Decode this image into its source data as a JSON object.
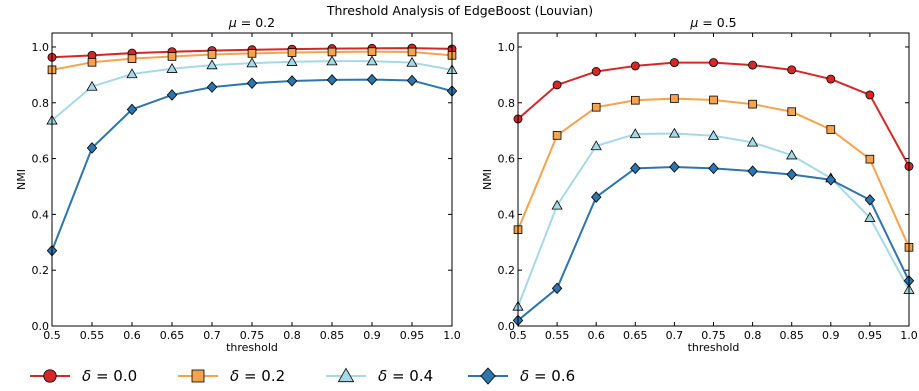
{
  "figure": {
    "title": "Threshold Analysis of EdgeBoost (Louvian)"
  },
  "chart_data": [
    {
      "type": "line",
      "subtitle_greek": "μ",
      "subtitle_rest": " = 0.2",
      "xlabel": "threshold",
      "ylabel": "NMI",
      "xlim": [
        0.5,
        1.0
      ],
      "ylim": [
        0.0,
        1.05
      ],
      "grid": false,
      "x": [
        0.5,
        0.55,
        0.6,
        0.65,
        0.7,
        0.75,
        0.8,
        0.85,
        0.9,
        0.95,
        1.0
      ],
      "xticks": [
        "0.5",
        "0.55",
        "0.6",
        "0.65",
        "0.7",
        "0.75",
        "0.8",
        "0.85",
        "0.9",
        "0.95",
        "1.0"
      ],
      "yticks": [
        "0.0",
        "0.2",
        "0.4",
        "0.6",
        "0.8",
        "1.0"
      ],
      "series": [
        {
          "values": [
            0.963,
            0.97,
            0.978,
            0.983,
            0.987,
            0.99,
            0.992,
            0.994,
            0.995,
            0.996,
            0.993
          ]
        },
        {
          "values": [
            0.918,
            0.945,
            0.958,
            0.966,
            0.973,
            0.977,
            0.98,
            0.982,
            0.983,
            0.982,
            0.97
          ]
        },
        {
          "values": [
            0.737,
            0.858,
            0.903,
            0.922,
            0.935,
            0.942,
            0.947,
            0.949,
            0.949,
            0.944,
            0.918
          ]
        },
        {
          "values": [
            0.27,
            0.638,
            0.776,
            0.828,
            0.856,
            0.87,
            0.878,
            0.882,
            0.883,
            0.88,
            0.842
          ]
        }
      ]
    },
    {
      "type": "line",
      "subtitle_greek": "μ",
      "subtitle_rest": " = 0.5",
      "xlabel": "threshold",
      "ylabel": "NMI",
      "xlim": [
        0.5,
        1.0
      ],
      "ylim": [
        0.0,
        1.05
      ],
      "grid": false,
      "x": [
        0.5,
        0.55,
        0.6,
        0.65,
        0.7,
        0.75,
        0.8,
        0.85,
        0.9,
        0.95,
        1.0
      ],
      "xticks": [
        "0.5",
        "0.55",
        "0.6",
        "0.65",
        "0.7",
        "0.75",
        "0.8",
        "0.85",
        "0.9",
        "0.95",
        "1.0"
      ],
      "yticks": [
        "0.0",
        "0.2",
        "0.4",
        "0.6",
        "0.8",
        "1.0"
      ],
      "series": [
        {
          "values": [
            0.742,
            0.864,
            0.912,
            0.932,
            0.944,
            0.944,
            0.935,
            0.918,
            0.885,
            0.828,
            0.572
          ]
        },
        {
          "values": [
            0.345,
            0.683,
            0.784,
            0.809,
            0.815,
            0.81,
            0.795,
            0.768,
            0.704,
            0.598,
            0.282
          ]
        },
        {
          "values": [
            0.07,
            0.432,
            0.645,
            0.688,
            0.69,
            0.682,
            0.658,
            0.612,
            0.53,
            0.388,
            0.13
          ]
        },
        {
          "values": [
            0.02,
            0.135,
            0.462,
            0.565,
            0.57,
            0.565,
            0.555,
            0.543,
            0.524,
            0.452,
            0.162
          ]
        }
      ]
    }
  ],
  "legend": {
    "placement": "bottom-left",
    "entries": [
      {
        "greek": "δ",
        "rest": " = 0.0",
        "color": "#d62728",
        "marker": "circle"
      },
      {
        "greek": "δ",
        "rest": " = 0.2",
        "color": "#f5a34d",
        "marker": "square"
      },
      {
        "greek": "δ",
        "rest": " = 0.4",
        "color": "#a6d9e8",
        "marker": "triangle"
      },
      {
        "greek": "δ",
        "rest": " = 0.6",
        "color": "#2d75ad",
        "marker": "diamond"
      }
    ]
  }
}
